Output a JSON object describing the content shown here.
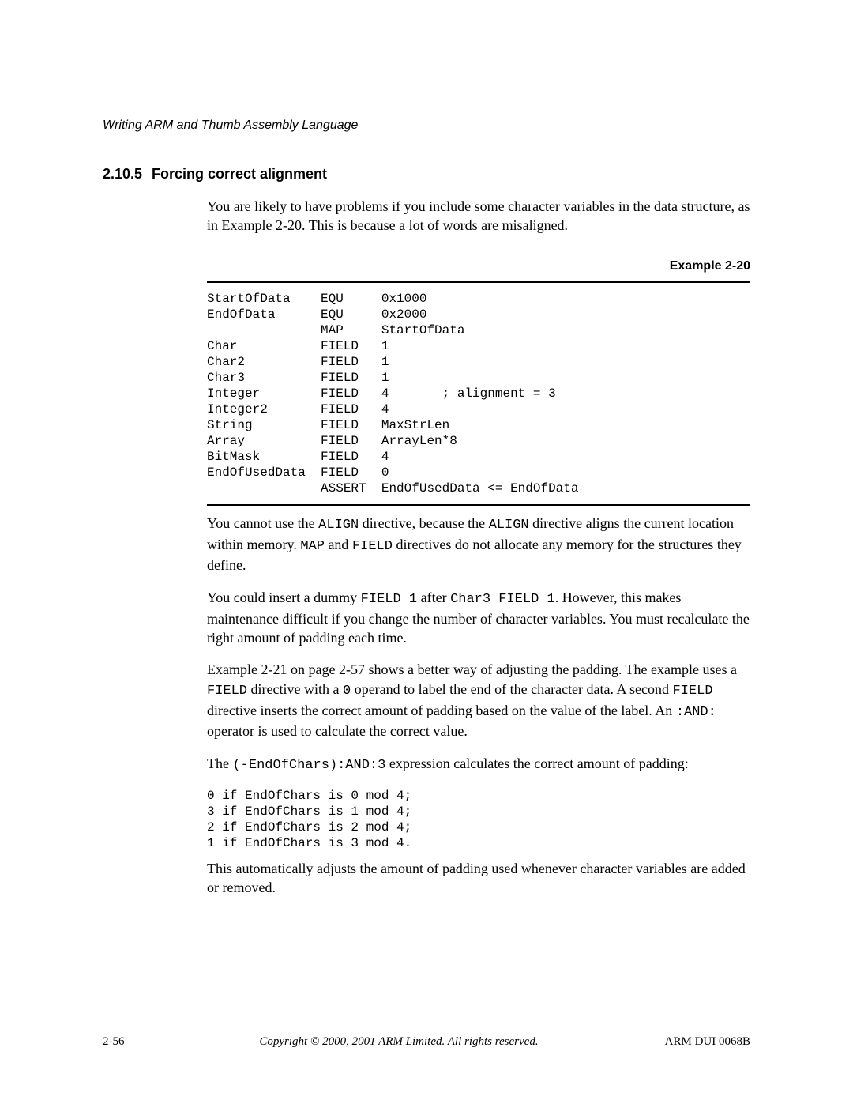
{
  "header": {
    "chapter_title": "Writing ARM and Thumb Assembly Language"
  },
  "section": {
    "number": "2.10.5",
    "title": "Forcing correct alignment"
  },
  "paragraphs": {
    "p1": "You are likely to have problems if you include some character variables in the data structure, as in Example 2-20. This is because a lot of words are misaligned.",
    "p2a": "You cannot use the ",
    "p2b": " directive, because the ",
    "p2c": " directive aligns the current location within memory. ",
    "p2d": " and ",
    "p2e": " directives do not allocate any memory for the structures they define.",
    "p3a": "You could insert a dummy ",
    "p3b": " after ",
    "p3c": ". However, this makes maintenance difficult if you change the number of character variables. You must recalculate the right amount of padding each time.",
    "p4a": "Example 2-21 on page 2-57 shows a better way of adjusting the padding. The example uses a ",
    "p4b": " directive with a ",
    "p4c": " operand to label the end of the character data. A second ",
    "p4d": " directive inserts the correct amount of padding based on the value of the label. An ",
    "p4e": " operator is used to calculate the correct value.",
    "p5a": "The ",
    "p5b": " expression calculates the correct amount of padding:",
    "p6": "This automatically adjusts the amount of padding used whenever character variables are added or removed."
  },
  "inline_code": {
    "align1": "ALIGN",
    "align2": "ALIGN",
    "map": "MAP",
    "field1": "FIELD",
    "dummy_field": "FIELD 1",
    "char3_field": "Char3 FIELD 1",
    "field2": "FIELD",
    "zero": "0",
    "field3": "FIELD",
    "and_op": ":AND:",
    "expr": "(-EndOfChars):AND:3"
  },
  "example": {
    "label": "Example 2-20",
    "code": "StartOfData    EQU     0x1000\nEndOfData      EQU     0x2000\n               MAP     StartOfData\nChar           FIELD   1\nChar2          FIELD   1\nChar3          FIELD   1\nInteger        FIELD   4       ; alignment = 3\nInteger2       FIELD   4\nString         FIELD   MaxStrLen\nArray          FIELD   ArrayLen*8\nBitMask        FIELD   4\nEndOfUsedData  FIELD   0\n               ASSERT  EndOfUsedData <= EndOfData"
  },
  "mod_code": "0 if EndOfChars is 0 mod 4;\n3 if EndOfChars is 1 mod 4;\n2 if EndOfChars is 2 mod 4;\n1 if EndOfChars is 3 mod 4.",
  "footer": {
    "page": "2-56",
    "copyright": "Copyright © 2000, 2001 ARM Limited. All rights reserved.",
    "docid": "ARM DUI 0068B"
  },
  "colors": {
    "text": "#000000",
    "background": "#ffffff",
    "rule": "#000000"
  }
}
